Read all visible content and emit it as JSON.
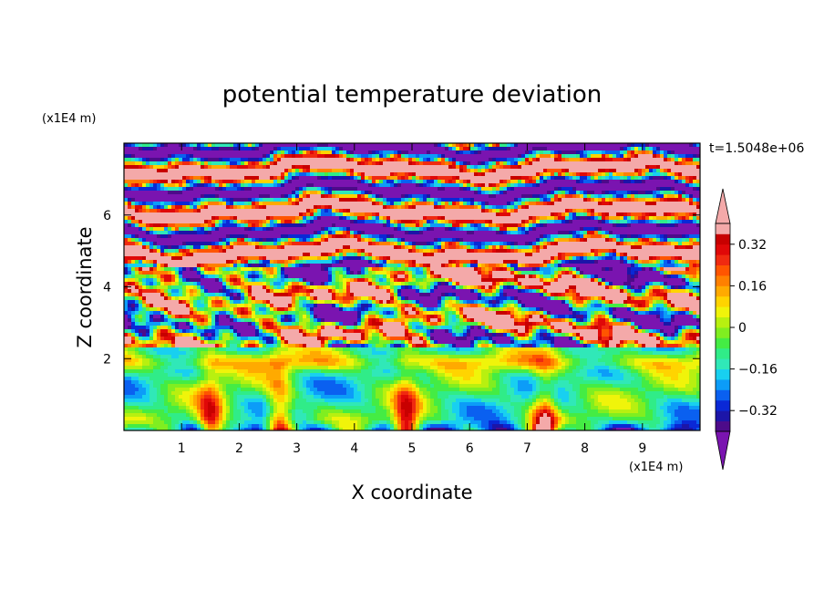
{
  "chart_data": {
    "type": "heatmap",
    "title": "potential temperature deviation",
    "xlabel": "X coordinate",
    "ylabel": "Z coordinate",
    "x_unit": "(x1E4 m)",
    "y_unit": "(x1E4 m)",
    "time_label": "t=1.5048e+06",
    "xlim": [
      0,
      10
    ],
    "ylim": [
      0,
      8
    ],
    "xticks": [
      1,
      2,
      3,
      4,
      5,
      6,
      7,
      8,
      9
    ],
    "yticks": [
      2,
      4,
      6
    ],
    "colorbar": {
      "levels": [
        -0.4,
        -0.36,
        -0.32,
        -0.28,
        -0.24,
        -0.2,
        -0.16,
        -0.12,
        -0.08,
        -0.04,
        0,
        0.04,
        0.08,
        0.12,
        0.16,
        0.2,
        0.24,
        0.28,
        0.32,
        0.36,
        0.4
      ],
      "tick_labels": [
        "0.32",
        "0.16",
        "0",
        "−0.16",
        "−0.32"
      ],
      "tick_values": [
        0.32,
        0.16,
        0,
        -0.16,
        -0.32
      ],
      "extend": "both",
      "low_color": "#7a14b0",
      "high_color": "#f4a9a9",
      "colors": [
        "#4d0b8a",
        "#1c15a8",
        "#0a28d6",
        "#0a60f0",
        "#0c9cf8",
        "#18d0f0",
        "#30e8b8",
        "#30ec88",
        "#44ec44",
        "#80ee20",
        "#b8f010",
        "#f0f40a",
        "#ffd400",
        "#ffaa00",
        "#ff8000",
        "#ff5500",
        "#f02a10",
        "#e00808",
        "#c80000",
        "#f4a9a9"
      ]
    },
    "structure": [
      {
        "zrange": [
          4.5,
          8
        ],
        "pattern": "alternating bands",
        "values": [
          -0.5,
          0.5
        ]
      },
      {
        "zrange": [
          2.3,
          4.5
        ],
        "pattern": "turbulent mixed layer",
        "values": [
          -0.4,
          0.4
        ]
      },
      {
        "zrange": [
          0,
          2.3
        ],
        "pattern": "convective plumes",
        "values": [
          -0.2,
          0.3
        ],
        "plume_centers_x": [
          1.5,
          2.7,
          4.9,
          7.3
        ]
      }
    ]
  }
}
